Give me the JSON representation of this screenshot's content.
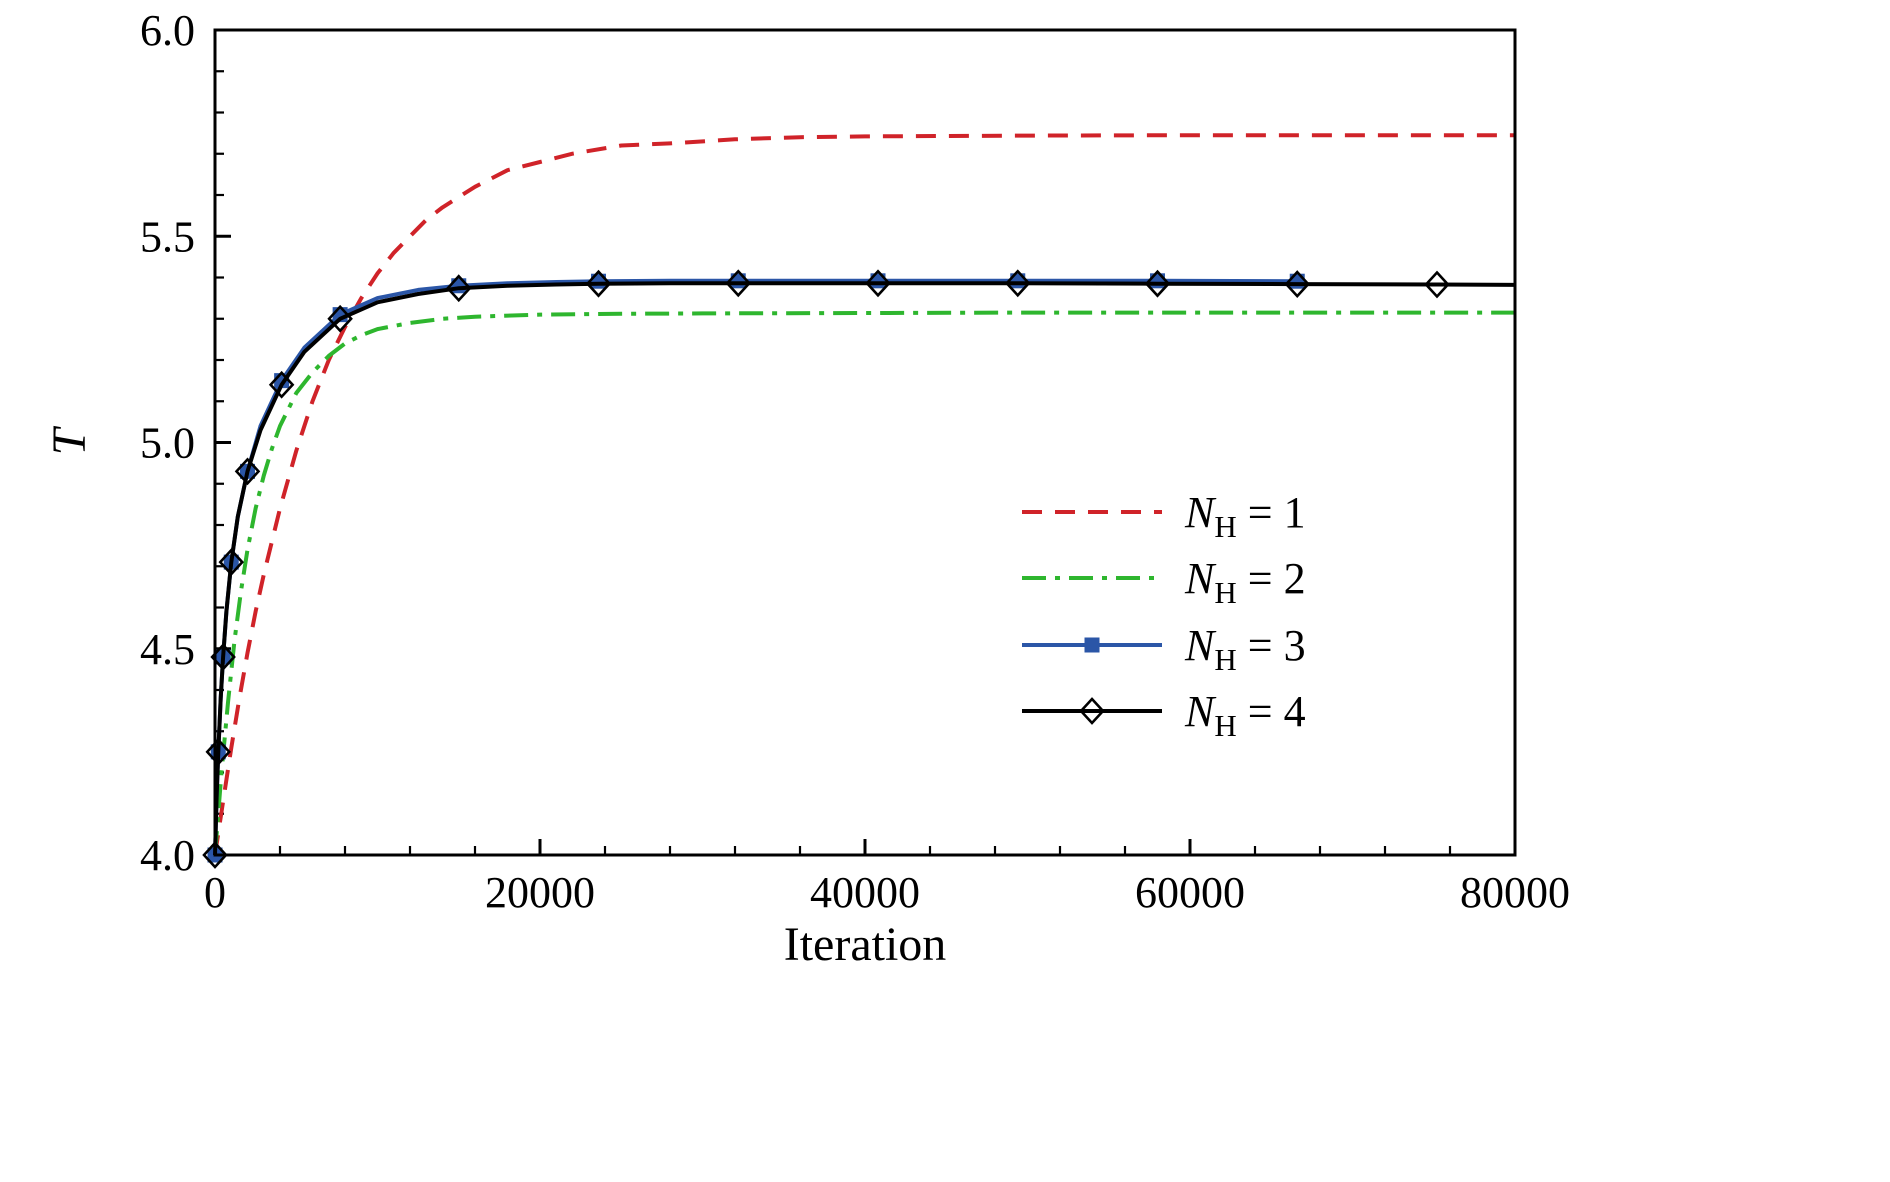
{
  "figure": {
    "background": "#ffffff"
  },
  "chart_data": {
    "type": "line",
    "title": "",
    "xlabel": "Iteration",
    "ylabel": "T",
    "xlim": [
      0,
      80000
    ],
    "ylim": [
      4.0,
      6.0
    ],
    "x_major_ticks": [
      0,
      20000,
      40000,
      60000,
      80000
    ],
    "x_tick_labels": [
      "0",
      "20000",
      "40000",
      "60000",
      "80000"
    ],
    "x_minor_step": 4000,
    "y_major_ticks": [
      4.0,
      4.5,
      5.0,
      5.5,
      6.0
    ],
    "y_tick_labels": [
      "4.0",
      "4.5",
      "5.0",
      "5.5",
      "6.0"
    ],
    "y_minor_step": 0.1,
    "grid": false,
    "legend_position": "center-right",
    "frame_color": "#000000",
    "series": [
      {
        "name": "NH1",
        "label": "N_H = 1",
        "color": "#d02329",
        "style": "dashed",
        "marker": "none",
        "asymptote": 5.745,
        "points": [
          [
            0,
            4.0
          ],
          [
            500,
            4.13
          ],
          [
            1000,
            4.26
          ],
          [
            1500,
            4.38
          ],
          [
            2000,
            4.49
          ],
          [
            2500,
            4.59
          ],
          [
            3000,
            4.68
          ],
          [
            4000,
            4.84
          ],
          [
            5000,
            4.98
          ],
          [
            6000,
            5.1
          ],
          [
            7000,
            5.2
          ],
          [
            8000,
            5.28
          ],
          [
            9000,
            5.35
          ],
          [
            10000,
            5.41
          ],
          [
            11000,
            5.46
          ],
          [
            12000,
            5.5
          ],
          [
            13000,
            5.54
          ],
          [
            14000,
            5.57
          ],
          [
            16000,
            5.62
          ],
          [
            18000,
            5.66
          ],
          [
            20000,
            5.68
          ],
          [
            22000,
            5.7
          ],
          [
            25000,
            5.72
          ],
          [
            28000,
            5.725
          ],
          [
            32000,
            5.735
          ],
          [
            36000,
            5.74
          ],
          [
            40000,
            5.742
          ],
          [
            50000,
            5.744
          ],
          [
            60000,
            5.745
          ],
          [
            70000,
            5.745
          ],
          [
            80000,
            5.745
          ]
        ]
      },
      {
        "name": "NH2",
        "label": "N_H = 2",
        "color": "#2eb62e",
        "style": "dash-dot",
        "marker": "none",
        "asymptote": 5.315,
        "points": [
          [
            0,
            4.0
          ],
          [
            400,
            4.2
          ],
          [
            800,
            4.37
          ],
          [
            1200,
            4.52
          ],
          [
            1600,
            4.64
          ],
          [
            2000,
            4.74
          ],
          [
            2500,
            4.84
          ],
          [
            3000,
            4.92
          ],
          [
            3500,
            4.985
          ],
          [
            4000,
            5.04
          ],
          [
            5000,
            5.12
          ],
          [
            6000,
            5.17
          ],
          [
            7000,
            5.21
          ],
          [
            8000,
            5.24
          ],
          [
            9000,
            5.26
          ],
          [
            10000,
            5.275
          ],
          [
            12000,
            5.29
          ],
          [
            14000,
            5.3
          ],
          [
            16000,
            5.305
          ],
          [
            20000,
            5.31
          ],
          [
            25000,
            5.312
          ],
          [
            30000,
            5.313
          ],
          [
            40000,
            5.314
          ],
          [
            50000,
            5.315
          ],
          [
            60000,
            5.315
          ],
          [
            70000,
            5.315
          ],
          [
            80000,
            5.315
          ]
        ]
      },
      {
        "name": "NH3",
        "label": "N_H = 3",
        "color": "#2b56a7",
        "style": "solid",
        "marker": "filled-square",
        "asymptote": 5.392,
        "points": [
          [
            0,
            4.0
          ],
          [
            100,
            4.14
          ],
          [
            200,
            4.25
          ],
          [
            350,
            4.38
          ],
          [
            500,
            4.48
          ],
          [
            700,
            4.59
          ],
          [
            1000,
            4.71
          ],
          [
            1400,
            4.82
          ],
          [
            2000,
            4.93
          ],
          [
            2800,
            5.04
          ],
          [
            4100,
            5.15
          ],
          [
            5500,
            5.23
          ],
          [
            7700,
            5.31
          ],
          [
            10000,
            5.35
          ],
          [
            12500,
            5.37
          ],
          [
            15000,
            5.38
          ],
          [
            18000,
            5.386
          ],
          [
            21000,
            5.389
          ],
          [
            23600,
            5.391
          ],
          [
            28000,
            5.392
          ],
          [
            32200,
            5.392
          ],
          [
            40800,
            5.392
          ],
          [
            49400,
            5.392
          ],
          [
            58000,
            5.392
          ],
          [
            67000,
            5.391
          ]
        ],
        "marker_points": [
          [
            0,
            4.0
          ],
          [
            200,
            4.25
          ],
          [
            500,
            4.48
          ],
          [
            1000,
            4.71
          ],
          [
            2000,
            4.93
          ],
          [
            4100,
            5.15
          ],
          [
            7700,
            5.31
          ],
          [
            15000,
            5.38
          ],
          [
            23600,
            5.391
          ],
          [
            32200,
            5.392
          ],
          [
            40800,
            5.392
          ],
          [
            49400,
            5.392
          ],
          [
            58000,
            5.392
          ],
          [
            66600,
            5.391
          ]
        ]
      },
      {
        "name": "NH4",
        "label": "N_H = 4",
        "color": "#000000",
        "style": "solid",
        "marker": "open-diamond",
        "asymptote": 5.385,
        "points": [
          [
            0,
            4.0
          ],
          [
            100,
            4.14
          ],
          [
            200,
            4.25
          ],
          [
            350,
            4.38
          ],
          [
            500,
            4.48
          ],
          [
            700,
            4.59
          ],
          [
            1000,
            4.71
          ],
          [
            1400,
            4.82
          ],
          [
            2000,
            4.93
          ],
          [
            2800,
            5.03
          ],
          [
            4100,
            5.14
          ],
          [
            5500,
            5.22
          ],
          [
            7700,
            5.3
          ],
          [
            10000,
            5.34
          ],
          [
            12500,
            5.36
          ],
          [
            15000,
            5.374
          ],
          [
            18000,
            5.38
          ],
          [
            21000,
            5.383
          ],
          [
            23600,
            5.385
          ],
          [
            28000,
            5.386
          ],
          [
            32200,
            5.386
          ],
          [
            40800,
            5.386
          ],
          [
            49400,
            5.386
          ],
          [
            58000,
            5.385
          ],
          [
            66600,
            5.384
          ],
          [
            75200,
            5.383
          ],
          [
            80000,
            5.382
          ]
        ],
        "marker_points": [
          [
            0,
            4.0
          ],
          [
            200,
            4.25
          ],
          [
            500,
            4.48
          ],
          [
            1000,
            4.71
          ],
          [
            2000,
            4.93
          ],
          [
            4100,
            5.14
          ],
          [
            7700,
            5.3
          ],
          [
            15000,
            5.374
          ],
          [
            23600,
            5.385
          ],
          [
            32200,
            5.386
          ],
          [
            40800,
            5.386
          ],
          [
            49400,
            5.386
          ],
          [
            58000,
            5.385
          ],
          [
            66600,
            5.384
          ],
          [
            75200,
            5.383
          ]
        ]
      }
    ]
  }
}
